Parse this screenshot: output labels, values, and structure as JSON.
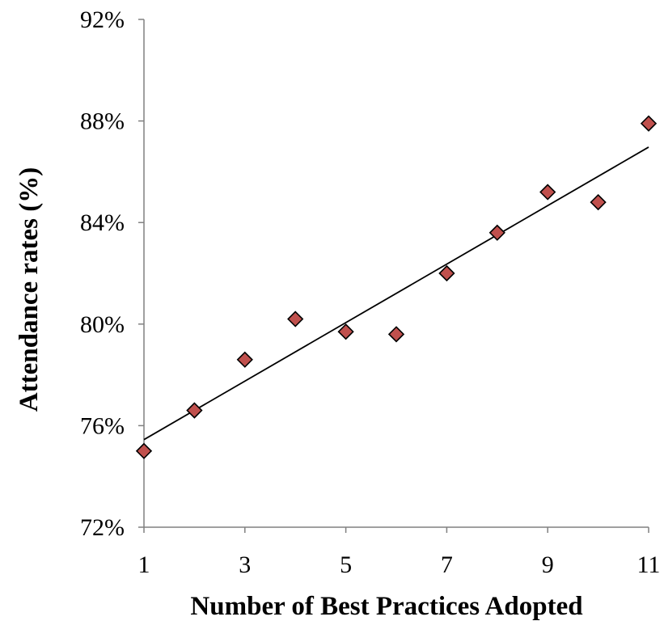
{
  "chart_data": {
    "type": "scatter",
    "title": "",
    "xlabel": "Number of Best Practices Adopted",
    "ylabel": "Attendance rates (%)",
    "xlim": [
      1,
      11
    ],
    "ylim": [
      72,
      92
    ],
    "x_ticks": [
      1,
      3,
      5,
      7,
      9,
      11
    ],
    "x_tick_labels": [
      "1",
      "3",
      "5",
      "7",
      "9",
      "11"
    ],
    "y_ticks": [
      72,
      76,
      80,
      84,
      88,
      92
    ],
    "y_tick_labels": [
      "72%",
      "76%",
      "80%",
      "84%",
      "88%",
      "92%"
    ],
    "grid": false,
    "legend": "none",
    "series": [
      {
        "x": [
          1,
          2,
          3,
          4,
          5,
          6,
          7,
          8,
          9,
          10,
          11
        ],
        "y": [
          75.0,
          76.6,
          78.6,
          80.2,
          79.7,
          79.6,
          82.0,
          83.6,
          85.2,
          84.8,
          87.9
        ],
        "marker": "diamond",
        "color": "#C0504D",
        "edge_color": "#000000"
      }
    ],
    "trendline": {
      "type": "linear",
      "x": [
        1,
        11
      ],
      "y": [
        75.45,
        86.97
      ],
      "color": "#000000"
    }
  }
}
